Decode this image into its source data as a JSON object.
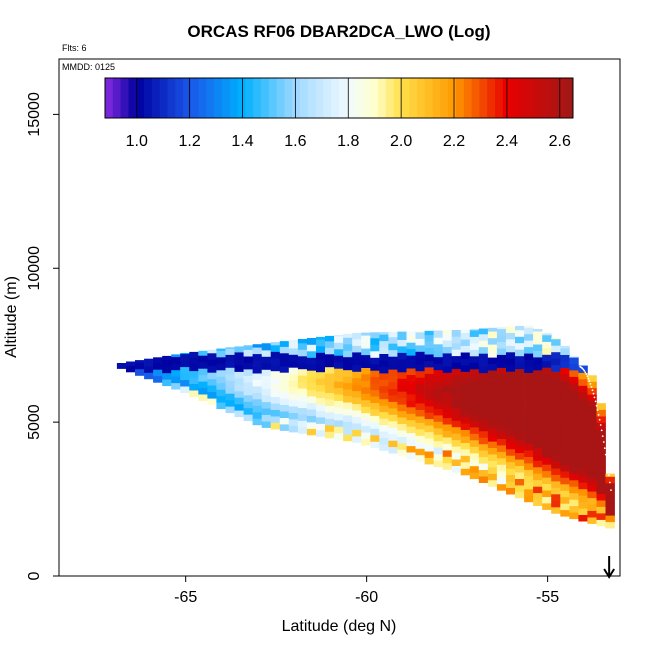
{
  "chart_data": {
    "type": "heatmap",
    "title": "ORCAS RF06 DBAR2DCA_LWO (Log)",
    "flights_label": "Flts: 6",
    "date_label": "MMDD: 0125",
    "xlabel": "Latitude (deg N)",
    "ylabel": "Altitude (m)",
    "xlim": [
      -68.5,
      -53.0
    ],
    "ylim": [
      0,
      16800
    ],
    "x_ticks": [
      -65,
      -60,
      -55
    ],
    "x_tick_labels": [
      "-65",
      "-60",
      "-55"
    ],
    "y_ticks": [
      0,
      5000,
      10000,
      15000
    ],
    "y_tick_labels": [
      "0",
      "5000",
      "10000",
      "15000"
    ],
    "colorbar": {
      "range": [
        0.88,
        2.65
      ],
      "ticks": [
        1.0,
        1.2,
        1.4,
        1.6,
        1.8,
        2.0,
        2.2,
        2.4,
        2.6
      ],
      "tick_labels": [
        "1.0",
        "1.2",
        "1.4",
        "1.6",
        "1.8",
        "2.0",
        "2.2",
        "2.4",
        "2.6"
      ],
      "stops": [
        {
          "value": 0.88,
          "color": "#8a2be2"
        },
        {
          "value": 1.0,
          "color": "#0000a0"
        },
        {
          "value": 1.2,
          "color": "#1a55e8"
        },
        {
          "value": 1.4,
          "color": "#00b0ff"
        },
        {
          "value": 1.6,
          "color": "#9fd8ff"
        },
        {
          "value": 1.8,
          "color": "#f2fbff"
        },
        {
          "value": 1.9,
          "color": "#ffffcc"
        },
        {
          "value": 2.0,
          "color": "#ffe04a"
        },
        {
          "value": 2.2,
          "color": "#ff9a00"
        },
        {
          "value": 2.4,
          "color": "#e80000"
        },
        {
          "value": 2.65,
          "color": "#a01818"
        }
      ]
    },
    "field": {
      "bin_lat": 0.25,
      "bin_alt": 210,
      "lat_start": -66.9,
      "top_edge": [
        [
          -66.9,
          6900
        ],
        [
          -65.0,
          7250
        ],
        [
          -62.9,
          7550
        ],
        [
          -60.3,
          7900
        ],
        [
          -57.3,
          8000
        ],
        [
          -55.5,
          8150
        ],
        [
          -54.7,
          7700
        ],
        [
          -53.6,
          6300
        ],
        [
          -53.25,
          3100
        ]
      ],
      "bottom_edge": [
        [
          -66.9,
          6800
        ],
        [
          -65.0,
          5950
        ],
        [
          -62.9,
          4850
        ],
        [
          -60.3,
          4350
        ],
        [
          -57.3,
          3300
        ],
        [
          -55.5,
          2400
        ],
        [
          -54.7,
          2000
        ],
        [
          -53.6,
          1650
        ],
        [
          -53.25,
          1550
        ]
      ],
      "dark_band": {
        "altitude_top": 7200,
        "altitude_bottom": 6700,
        "value": 1.0
      },
      "core_value_max": 2.55
    },
    "arrow": {
      "latitude": -53.3,
      "direction": "down"
    },
    "flight_track_dotted": "white"
  }
}
